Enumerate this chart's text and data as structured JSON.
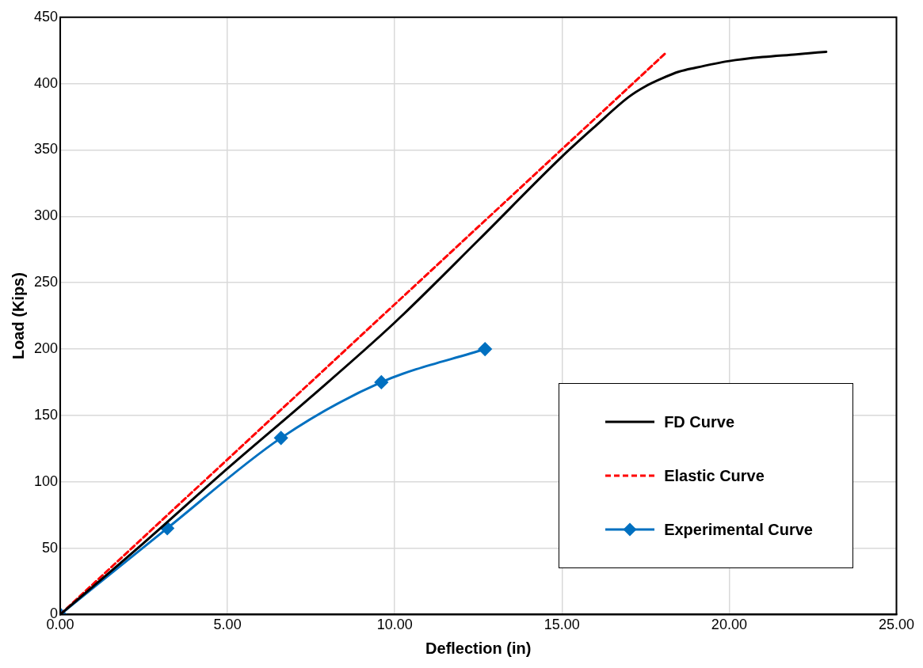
{
  "chart_data": {
    "type": "line",
    "xlabel": "Deflection (in)",
    "ylabel": "Load (Kips)",
    "xlim": [
      0,
      25
    ],
    "xticks": [
      {
        "value": 0,
        "label": "0.00"
      },
      {
        "value": 5,
        "label": "5.00"
      },
      {
        "value": 10,
        "label": "10.00"
      },
      {
        "value": 15,
        "label": "15.00"
      },
      {
        "value": 20,
        "label": "20.00"
      },
      {
        "value": 25,
        "label": "25.00"
      }
    ],
    "ylim": [
      0,
      450
    ],
    "yticks": [
      0,
      50,
      100,
      150,
      200,
      250,
      300,
      350,
      400,
      450
    ],
    "grid": true,
    "legend": "bottom right",
    "series": [
      {
        "name": "FD Curve",
        "color": "#000000",
        "marker": "none",
        "line_style": "solid",
        "x": [
          0,
          2.5,
          5,
          7.5,
          10,
          12.5,
          15,
          16,
          17,
          17.5,
          18,
          18.5,
          19,
          20,
          21,
          22,
          22.9
        ],
        "values": [
          0,
          54,
          110,
          164,
          220,
          282,
          345,
          368,
          390,
          398,
          404,
          409,
          412,
          417,
          420,
          422,
          424
        ]
      },
      {
        "name": "Elastic Curve",
        "color": "#ff0000",
        "marker": "none",
        "line_style": "dashed",
        "x": [
          0,
          18.1
        ],
        "values": [
          0,
          423
        ]
      },
      {
        "name": "Experimental Curve",
        "color": "#0070c0",
        "marker": "diamond",
        "line_style": "solid",
        "x": [
          0,
          3.2,
          6.6,
          9.6,
          12.7
        ],
        "values": [
          0,
          65,
          133,
          175,
          200
        ]
      }
    ]
  }
}
